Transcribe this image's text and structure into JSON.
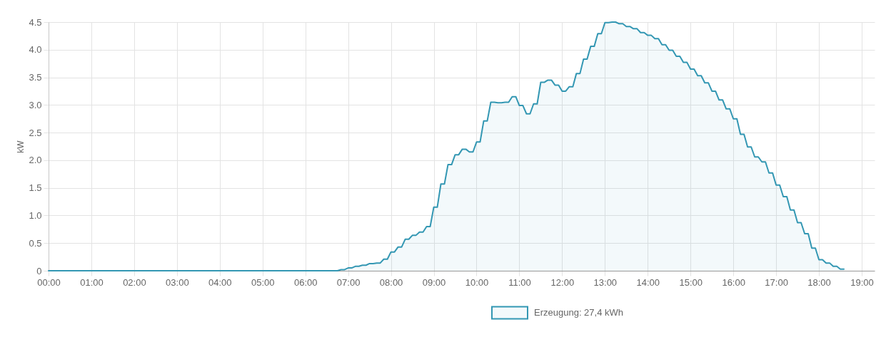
{
  "chart_data": {
    "type": "area",
    "ylabel": "kW",
    "xlim": [
      0,
      19.3
    ],
    "xticks": [
      {
        "value": 0,
        "label": "00:00"
      },
      {
        "value": 1,
        "label": "01:00"
      },
      {
        "value": 2,
        "label": "02:00"
      },
      {
        "value": 3,
        "label": "03:00"
      },
      {
        "value": 4,
        "label": "04:00"
      },
      {
        "value": 5,
        "label": "05:00"
      },
      {
        "value": 6,
        "label": "06:00"
      },
      {
        "value": 7,
        "label": "07:00"
      },
      {
        "value": 8,
        "label": "08:00"
      },
      {
        "value": 9,
        "label": "09:00"
      },
      {
        "value": 10,
        "label": "10:00"
      },
      {
        "value": 11,
        "label": "11:00"
      },
      {
        "value": 12,
        "label": "12:00"
      },
      {
        "value": 13,
        "label": "13:00"
      },
      {
        "value": 14,
        "label": "14:00"
      },
      {
        "value": 15,
        "label": "15:00"
      },
      {
        "value": 16,
        "label": "16:00"
      },
      {
        "value": 17,
        "label": "17:00"
      },
      {
        "value": 18,
        "label": "18:00"
      },
      {
        "value": 19,
        "label": "19:00"
      }
    ],
    "ylim": [
      0,
      4.5
    ],
    "yticks": [
      0,
      0.5,
      {
        "value": 1,
        "label": "1.0"
      },
      1.5,
      {
        "value": 2,
        "label": "2.0"
      },
      2.5,
      {
        "value": 3,
        "label": "3.0"
      },
      3.5,
      {
        "value": 4,
        "label": "4.0"
      },
      4.5
    ],
    "grid": true,
    "legend": "bottom",
    "series": [
      {
        "name": "Erzeugung: 27,4 kWh",
        "color": "#3397b3",
        "x": [
          0,
          6.75,
          6.833,
          6.917,
          7,
          7.083,
          7.167,
          7.25,
          7.333,
          7.417,
          7.5,
          7.583,
          7.667,
          7.75,
          7.833,
          7.917,
          8,
          8.083,
          8.167,
          8.25,
          8.333,
          8.417,
          8.5,
          8.583,
          8.667,
          8.75,
          8.833,
          8.917,
          9,
          9.083,
          9.167,
          9.25,
          9.333,
          9.417,
          9.5,
          9.583,
          9.667,
          9.75,
          9.833,
          9.917,
          10,
          10.083,
          10.167,
          10.25,
          10.333,
          10.417,
          10.5,
          10.583,
          10.667,
          10.75,
          10.833,
          10.917,
          11,
          11.083,
          11.167,
          11.25,
          11.333,
          11.417,
          11.5,
          11.583,
          11.667,
          11.75,
          11.833,
          11.917,
          12,
          12.083,
          12.167,
          12.25,
          12.333,
          12.417,
          12.5,
          12.583,
          12.667,
          12.75,
          12.833,
          12.917,
          13,
          13.083,
          13.167,
          13.25,
          13.333,
          13.417,
          13.5,
          13.583,
          13.667,
          13.75,
          13.833,
          13.917,
          14,
          14.083,
          14.167,
          14.25,
          14.333,
          14.417,
          14.5,
          14.583,
          14.667,
          14.75,
          14.833,
          14.917,
          15,
          15.083,
          15.167,
          15.25,
          15.333,
          15.417,
          15.5,
          15.583,
          15.667,
          15.75,
          15.833,
          15.917,
          16,
          16.083,
          16.167,
          16.25,
          16.333,
          16.417,
          16.5,
          16.583,
          16.667,
          16.75,
          16.833,
          16.917,
          17,
          17.083,
          17.167,
          17.25,
          17.333,
          17.417,
          17.5,
          17.583,
          17.667,
          17.75,
          17.833,
          17.917,
          18,
          18.083,
          18.167,
          18.25,
          18.333,
          18.417,
          18.5,
          18.583
        ],
        "values": [
          0,
          0,
          0.02,
          0.02,
          0.05,
          0.05,
          0.08,
          0.08,
          0.1,
          0.1,
          0.13,
          0.13,
          0.14,
          0.14,
          0.21,
          0.21,
          0.34,
          0.34,
          0.43,
          0.43,
          0.57,
          0.57,
          0.64,
          0.64,
          0.7,
          0.7,
          0.8,
          0.8,
          1.15,
          1.15,
          1.57,
          1.57,
          1.92,
          1.92,
          2.1,
          2.1,
          2.2,
          2.2,
          2.15,
          2.15,
          2.33,
          2.33,
          2.71,
          2.71,
          3.05,
          3.05,
          3.04,
          3.04,
          3.05,
          3.05,
          3.15,
          3.15,
          2.99,
          2.99,
          2.84,
          2.84,
          3.02,
          3.02,
          3.41,
          3.41,
          3.45,
          3.45,
          3.36,
          3.36,
          3.25,
          3.25,
          3.33,
          3.33,
          3.57,
          3.57,
          3.83,
          3.83,
          4.06,
          4.06,
          4.29,
          4.29,
          4.49,
          4.49,
          4.5,
          4.5,
          4.47,
          4.47,
          4.42,
          4.42,
          4.38,
          4.38,
          4.31,
          4.31,
          4.26,
          4.26,
          4.2,
          4.2,
          4.09,
          4.09,
          3.99,
          3.99,
          3.88,
          3.88,
          3.77,
          3.77,
          3.65,
          3.65,
          3.53,
          3.53,
          3.4,
          3.4,
          3.25,
          3.25,
          3.09,
          3.09,
          2.93,
          2.93,
          2.75,
          2.75,
          2.47,
          2.47,
          2.24,
          2.24,
          2.06,
          2.06,
          1.97,
          1.97,
          1.77,
          1.77,
          1.55,
          1.55,
          1.34,
          1.34,
          1.1,
          1.1,
          0.87,
          0.87,
          0.67,
          0.67,
          0.41,
          0.41,
          0.2,
          0.2,
          0.14,
          0.14,
          0.08,
          0.08,
          0.03,
          0.03
        ]
      }
    ]
  }
}
